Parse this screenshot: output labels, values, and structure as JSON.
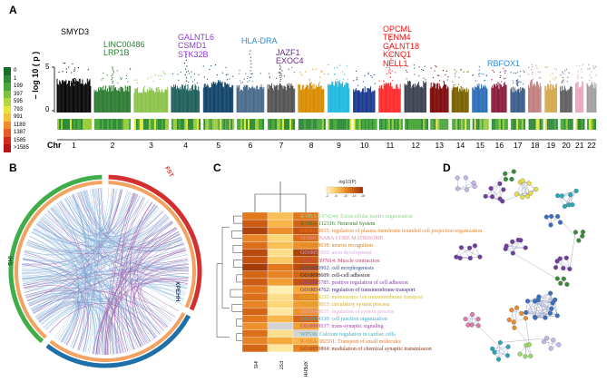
{
  "panels": {
    "a": "A",
    "b": "B",
    "c": "C",
    "d": "D"
  },
  "manhattan": {
    "y_axis_label": "– log 10 ( p )",
    "y_tick_5": "5",
    "y_tick_0": "0",
    "chr_label": "Chr",
    "chromosomes": [
      "1",
      "2",
      "3",
      "4",
      "5",
      "6",
      "7",
      "8",
      "9",
      "10",
      "11",
      "12",
      "13",
      "14",
      "15",
      "16",
      "17",
      "18",
      "19",
      "20",
      "21",
      "22"
    ],
    "chromosome_colors": [
      "#0a0a0a",
      "#2e7d32",
      "#8bc34a",
      "#1f5f5b",
      "#12456b",
      "#4a6b8a",
      "#555555",
      "#d98c00",
      "#21b9e0",
      "#1a3a8f",
      "#ff2a2a",
      "#3d4150",
      "#7f0a0a",
      "#7a6200",
      "#2d6eb8",
      "#8b1a3c",
      "#3b5d8a",
      "#c08080",
      "#d4a84e",
      "#606060",
      "#e8a8c0",
      "#a0a0a0"
    ],
    "gene_groups": [
      {
        "genes": [
          "SMYD3"
        ],
        "color": "#000000"
      },
      {
        "genes": [
          "LINC00486",
          "LRP1B"
        ],
        "color": "#2e7d32"
      },
      {
        "genes": [
          "GALNTL6",
          "CSMD1",
          "STK32B"
        ],
        "color": "#8e3ad6"
      },
      {
        "genes": [
          "HLA-DRA"
        ],
        "color": "#2a8ad8"
      },
      {
        "genes": [
          "JAZF1",
          "EXOC4"
        ],
        "color": "#6a2a8a"
      },
      {
        "genes": [
          "OPCML",
          "TENM4",
          "GALNT18",
          "KCNQ1",
          "NELL1"
        ],
        "color": "#ee1111"
      },
      {
        "genes": [
          "RBFOX1"
        ],
        "color": "#2a8ad8"
      }
    ]
  },
  "legend": {
    "values": [
      "0",
      "1",
      "199",
      "397",
      "595",
      "793",
      "991",
      "1189",
      "1387",
      "1585",
      ">1585"
    ],
    "colors": [
      "#1a6b2a",
      "#2e8b3a",
      "#4aa83a",
      "#7cc240",
      "#b2d63c",
      "#e6e63a",
      "#f2c23a",
      "#f08c2e",
      "#e85a28",
      "#d42a1e",
      "#b81414"
    ]
  },
  "chord": {
    "labels": {
      "fst": "FST",
      "xpehh": "XPEHH",
      "ihs": "iHS"
    },
    "colors": {
      "fst": "#d32f2f",
      "xpehh": "#1f6fa8",
      "ihs": "#3fae49",
      "inner": "#f4a261",
      "links": "#7aaad6",
      "highlight": "#9b5aa8"
    }
  },
  "heatmap": {
    "legend_title": "-log10(P)",
    "legend_ticks": [
      "-2",
      "-6",
      "-10",
      "-14",
      "-18"
    ],
    "columns": [
      "iHS",
      "FST",
      "XPEHH"
    ],
    "grid": [
      [
        0.6,
        0.3,
        0.6
      ],
      [
        0.75,
        0.35,
        0.7
      ],
      [
        0.9,
        0.5,
        0.8
      ],
      [
        0.55,
        0.2,
        0.65
      ],
      [
        0.65,
        0.3,
        0.5
      ],
      [
        0.85,
        0.15,
        0.9
      ],
      [
        0.8,
        0.25,
        0.75
      ],
      [
        0.95,
        0.6,
        0.85
      ],
      [
        0.7,
        0.55,
        0.7
      ],
      [
        0.75,
        0.45,
        0.8
      ],
      [
        0.6,
        0.05,
        0.4
      ],
      [
        0.65,
        0.15,
        0.55
      ],
      [
        0.55,
        0.2,
        0.45
      ],
      [
        0.7,
        0.1,
        0.5
      ],
      [
        0.6,
        0.35,
        0.7
      ],
      [
        0.5,
        -1,
        0.45
      ],
      [
        0.65,
        0.15,
        -1
      ],
      [
        0.55,
        0.4,
        0.35
      ],
      [
        0.7,
        0.1,
        0.55
      ]
    ],
    "terms": [
      {
        "text": "R-HSA-1474244: Extracellular matrix organization",
        "color": "#8fd48f"
      },
      {
        "text": "R-HSA-112316: Neuronal System",
        "color": "#2a7a2a"
      },
      {
        "text": "GO:0120035: regulation of plasma membrane bounded cell projection organization",
        "color": "#f08020"
      },
      {
        "text": "M5884: NABA CORE MATRISOME",
        "color": "#e08aa0"
      },
      {
        "text": "GO:0008038: neuron recognition",
        "color": "#d08020"
      },
      {
        "text": "GO:0051050: axon development",
        "color": "#d8a8e8"
      },
      {
        "text": "R-HSA-397014: Muscle contraction",
        "color": "#c04060"
      },
      {
        "text": "GO:0000902: cell morphogenesis",
        "color": "#305090"
      },
      {
        "text": "GO:0098609: cell-cell adhesion",
        "color": "#202020"
      },
      {
        "text": "GO:0045785: positive regulation of cell adhesion",
        "color": "#8040b0"
      },
      {
        "text": "GO:0034762: regulation of transmembrane transport",
        "color": "#402880"
      },
      {
        "text": "GO:0034220: monoatomic ion transmembrane transport",
        "color": "#d8c020"
      },
      {
        "text": "GO:0003013: circulatory system process",
        "color": "#d4a020"
      },
      {
        "text": "GO:0048037: regulation of system process",
        "color": "#e0a8d0"
      },
      {
        "text": "GO:0034330: cell junction organization",
        "color": "#40a8d0"
      },
      {
        "text": "GO:0099537: trans-synaptic signaling",
        "color": "#a040b0"
      },
      {
        "text": "WP536: Calcium regulation in cardiac cells",
        "color": "#40b0c0"
      },
      {
        "text": "R-HSA-382551: Transport of small molecules",
        "color": "#e07830"
      },
      {
        "text": "GO:0050804: modulation of chemical synaptic transmission",
        "color": "#8a3010"
      }
    ]
  },
  "network": {
    "colors": {
      "edge": "#9ea4c4",
      "purple": "#6f3f9f",
      "lavender": "#c8b6e8",
      "yellow": "#e8e040",
      "green": "#3b8a3b",
      "blue": "#3a6ec0",
      "orange": "#ef8a2a",
      "teal": "#2aa8b8",
      "pink": "#e07aa8",
      "lime": "#9ad86a"
    }
  }
}
